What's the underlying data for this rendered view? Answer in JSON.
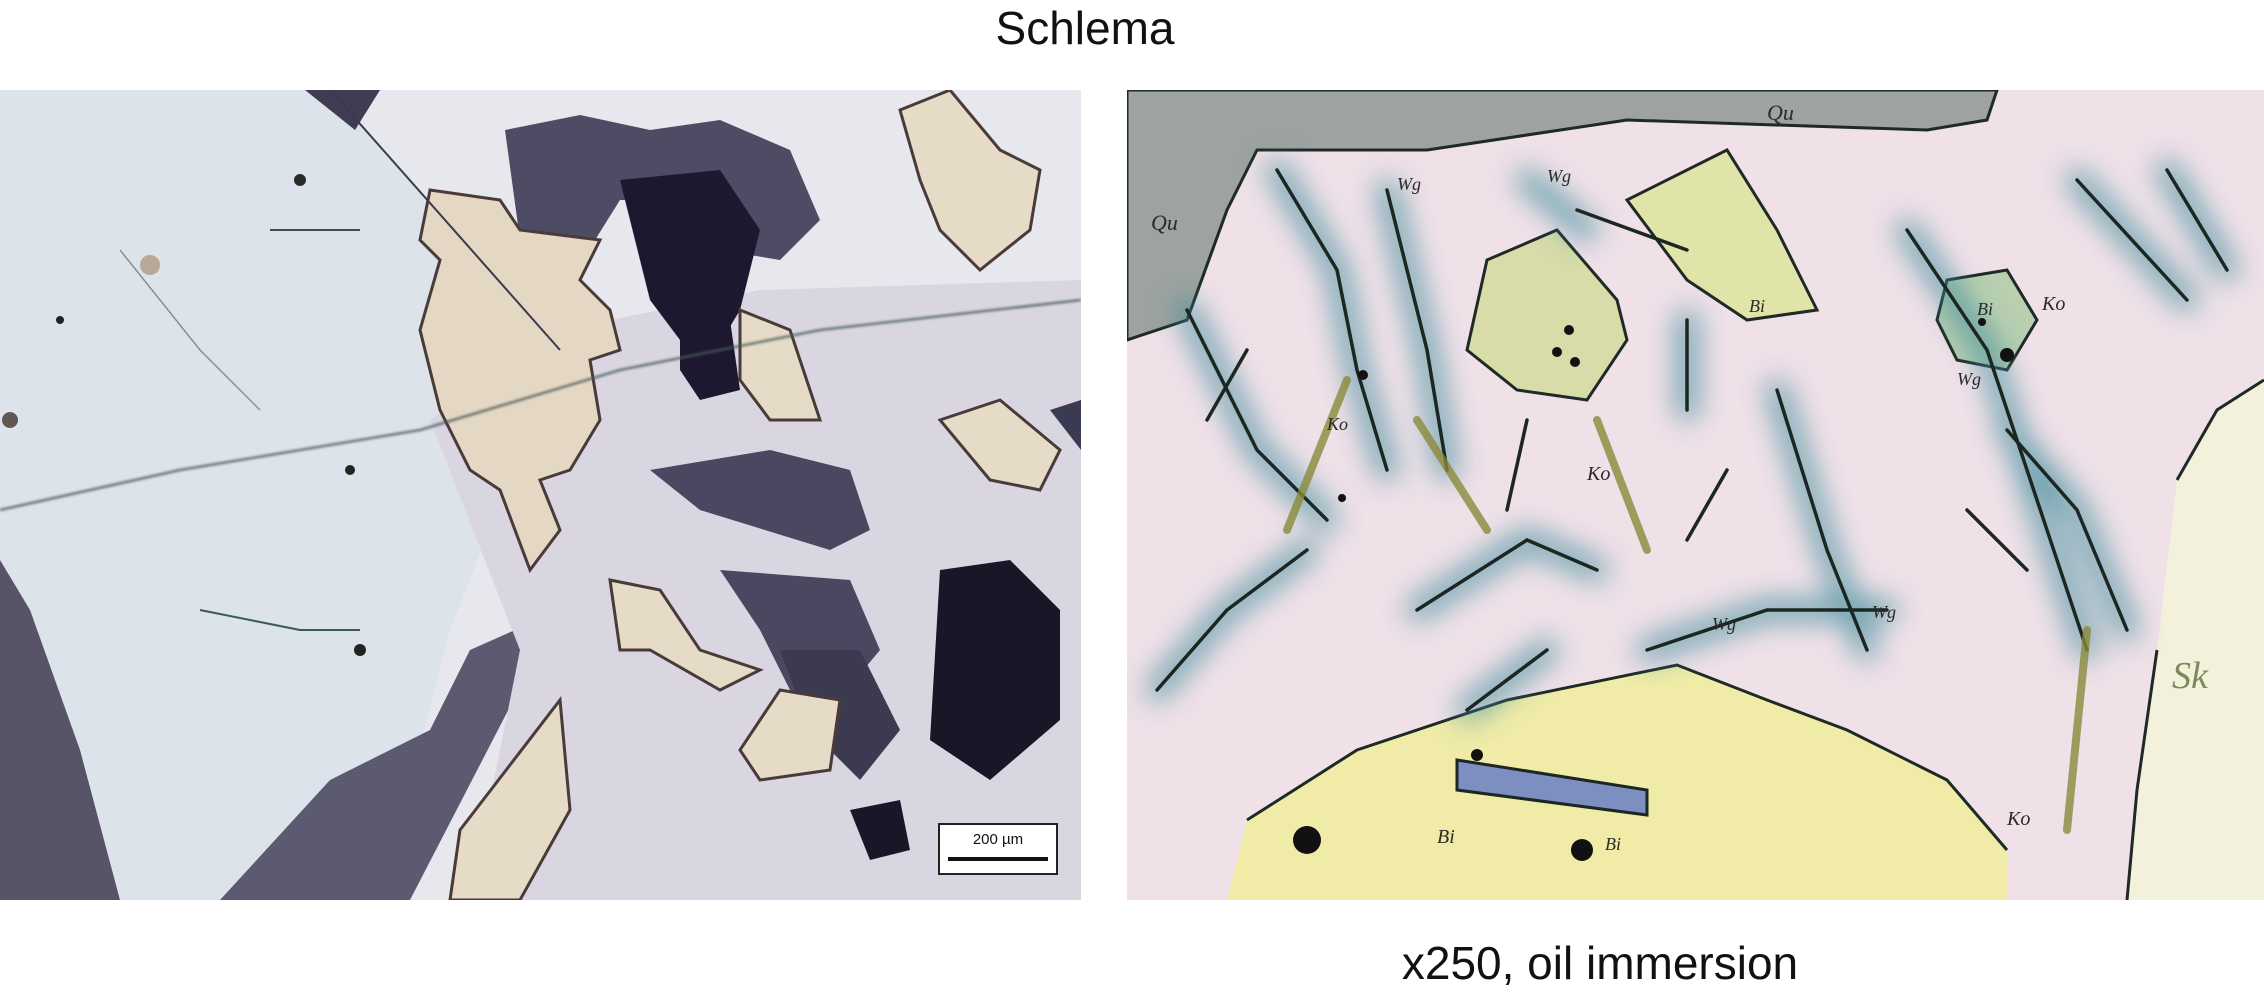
{
  "figure": {
    "title": "Schlema",
    "caption": "x250, oil immersion",
    "left_image": {
      "scale_bar_label": "200 µm"
    },
    "right_image": {
      "annotations": [
        "Qu",
        "Qu",
        "Wg",
        "Wg",
        "Wg",
        "Wg",
        "Wg",
        "Bi",
        "Bi",
        "Bi",
        "Bi",
        "Ko",
        "Ko",
        "Ko",
        "Ko",
        "Sk"
      ]
    }
  }
}
